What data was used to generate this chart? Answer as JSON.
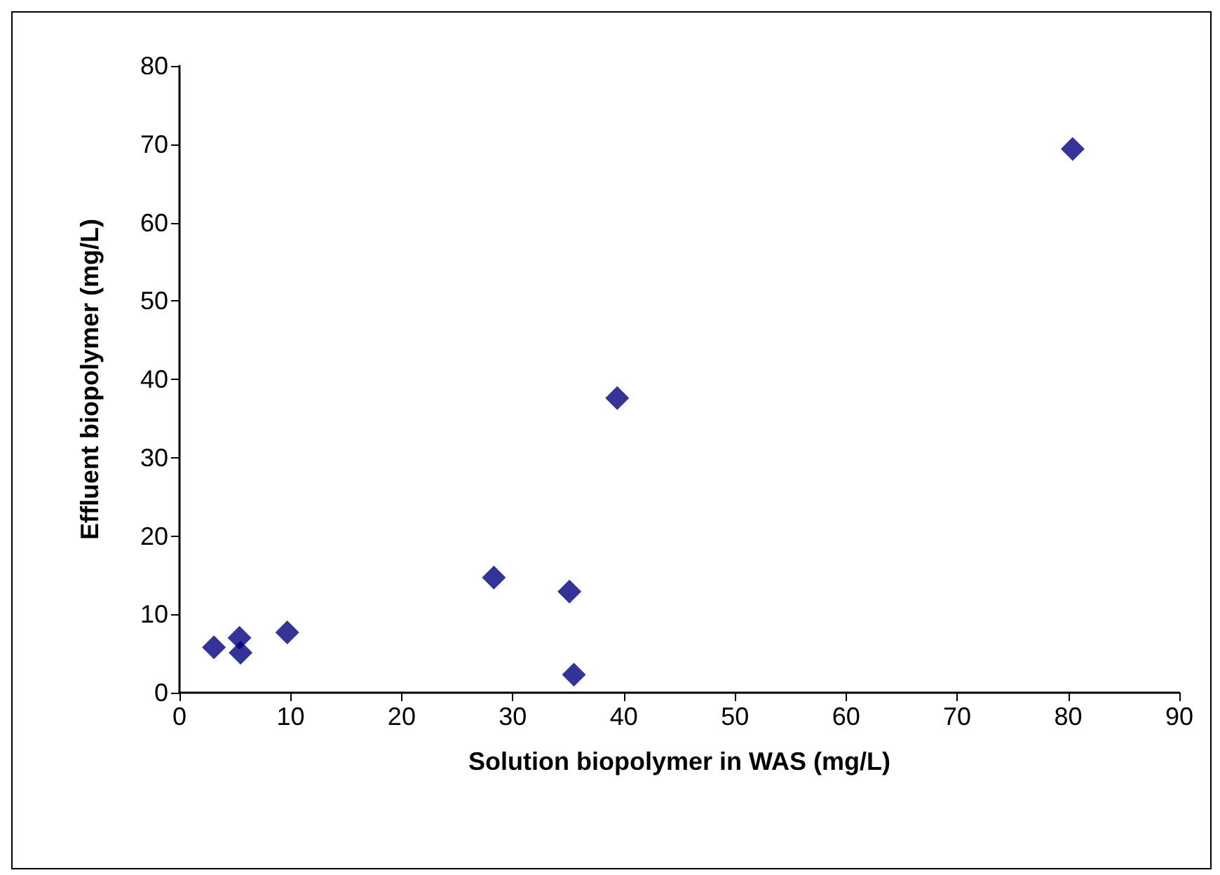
{
  "chart_data": {
    "type": "scatter",
    "xlabel": "Solution biopolymer in WAS (mg/L)",
    "ylabel": "Effluent biopolymer (mg/L)",
    "series": [
      {
        "color": "#000080",
        "x": [
          3.1,
          5.4,
          5.5,
          9.7,
          28.3,
          35.1,
          35.5,
          39.4,
          80.4
        ],
        "values": [
          5.8,
          7.0,
          5.1,
          7.7,
          14.7,
          12.9,
          2.3,
          37.6,
          69.4
        ]
      }
    ],
    "xlim": [
      0,
      90
    ],
    "xticks": [
      0,
      10,
      20,
      30,
      40,
      50,
      60,
      70,
      80,
      90
    ],
    "ylim": [
      0,
      80
    ],
    "yticks": [
      0,
      10,
      20,
      30,
      40,
      50,
      60,
      70,
      80
    ],
    "grid": false,
    "legend": false,
    "marker": "diamond"
  }
}
